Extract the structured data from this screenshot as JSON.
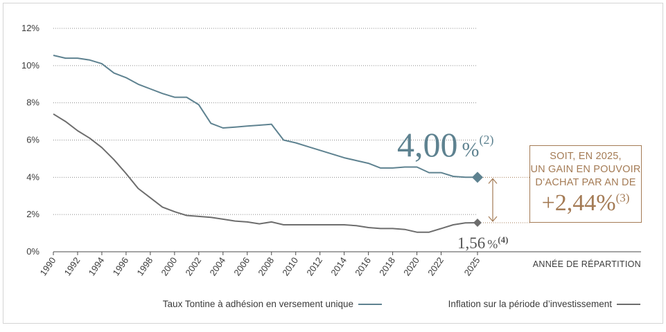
{
  "chart_data": {
    "type": "line",
    "xlabel": "ANNÉE DE RÉPARTITION",
    "ylabel": "",
    "xlim": [
      1990,
      2025
    ],
    "ylim": [
      0,
      12
    ],
    "grid": "horizontal dotted",
    "legend_position": "bottom",
    "x_tick_labels": [
      "1990",
      "1992",
      "1994",
      "1996",
      "1998",
      "2000",
      "2002",
      "2004",
      "2006",
      "2008",
      "2010",
      "2012",
      "2014",
      "2016",
      "2018",
      "2020",
      "2022",
      "2025"
    ],
    "y_tick_labels": [
      "12%",
      "10%",
      "8%",
      "6%",
      "4%",
      "2%",
      "0%"
    ],
    "series": [
      {
        "name": "Taux Tontine à adhésion en versement unique",
        "color": "#5e8290",
        "x": [
          1990,
          1991,
          1992,
          1993,
          1994,
          1995,
          1996,
          1997,
          1998,
          1999,
          2000,
          2001,
          2002,
          2003,
          2004,
          2005,
          2006,
          2007,
          2008,
          2009,
          2010,
          2011,
          2012,
          2013,
          2014,
          2015,
          2016,
          2017,
          2018,
          2019,
          2020,
          2021,
          2022,
          2023,
          2024,
          2025
        ],
        "y": [
          10.55,
          10.4,
          10.4,
          10.3,
          10.1,
          9.6,
          9.35,
          9.0,
          8.75,
          8.5,
          8.3,
          8.3,
          7.9,
          6.9,
          6.65,
          6.7,
          6.75,
          6.8,
          6.85,
          6.0,
          5.85,
          5.65,
          5.45,
          5.25,
          5.05,
          4.9,
          4.75,
          4.5,
          4.5,
          4.55,
          4.55,
          4.25,
          4.25,
          4.05,
          4.0,
          4.0
        ]
      },
      {
        "name": "Inflation sur la période d’investissement",
        "color": "#6d6d6d",
        "x": [
          1990,
          1991,
          1992,
          1993,
          1994,
          1995,
          1996,
          1997,
          1998,
          1999,
          2000,
          2001,
          2002,
          2003,
          2004,
          2005,
          2006,
          2007,
          2008,
          2009,
          2010,
          2011,
          2012,
          2013,
          2014,
          2015,
          2016,
          2017,
          2018,
          2019,
          2020,
          2021,
          2022,
          2023,
          2024,
          2025
        ],
        "y": [
          7.4,
          7.0,
          6.5,
          6.1,
          5.6,
          4.95,
          4.2,
          3.4,
          2.9,
          2.4,
          2.15,
          1.95,
          1.9,
          1.85,
          1.75,
          1.65,
          1.6,
          1.5,
          1.6,
          1.45,
          1.45,
          1.45,
          1.45,
          1.45,
          1.45,
          1.4,
          1.3,
          1.25,
          1.25,
          1.2,
          1.05,
          1.05,
          1.25,
          1.45,
          1.55,
          1.56
        ]
      }
    ],
    "annotations": {
      "final_rate": "4,00",
      "final_rate_unit": "%",
      "final_rate_note": "(2)",
      "final_inflation": "1,56",
      "final_inflation_unit": "%",
      "final_inflation_note": "(4)",
      "callout_lines": [
        "SOIT, EN 2025,",
        "UN GAIN EN POUVOIR",
        "D’ACHAT PAR AN DE"
      ],
      "callout_gain": "+2,44%",
      "callout_gain_note": "(3)",
      "accent_color": "#a47b55"
    }
  }
}
